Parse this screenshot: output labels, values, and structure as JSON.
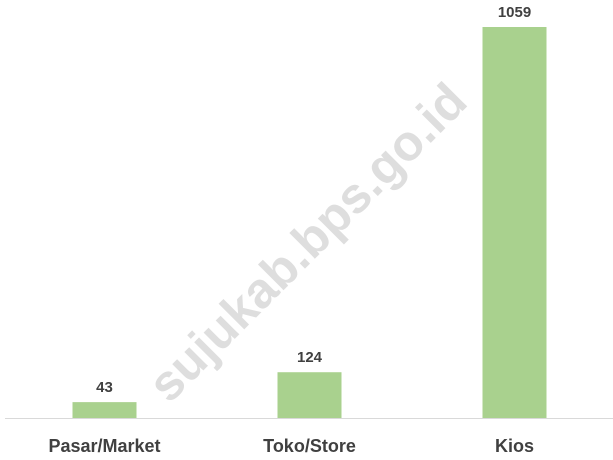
{
  "chart_data": {
    "type": "bar",
    "categories": [
      "Pasar/Market",
      "Toko/Store",
      "Kios"
    ],
    "values": [
      43,
      124,
      1059
    ],
    "color": "#a9d18e",
    "watermark": "sujukab.bps.go.id"
  }
}
